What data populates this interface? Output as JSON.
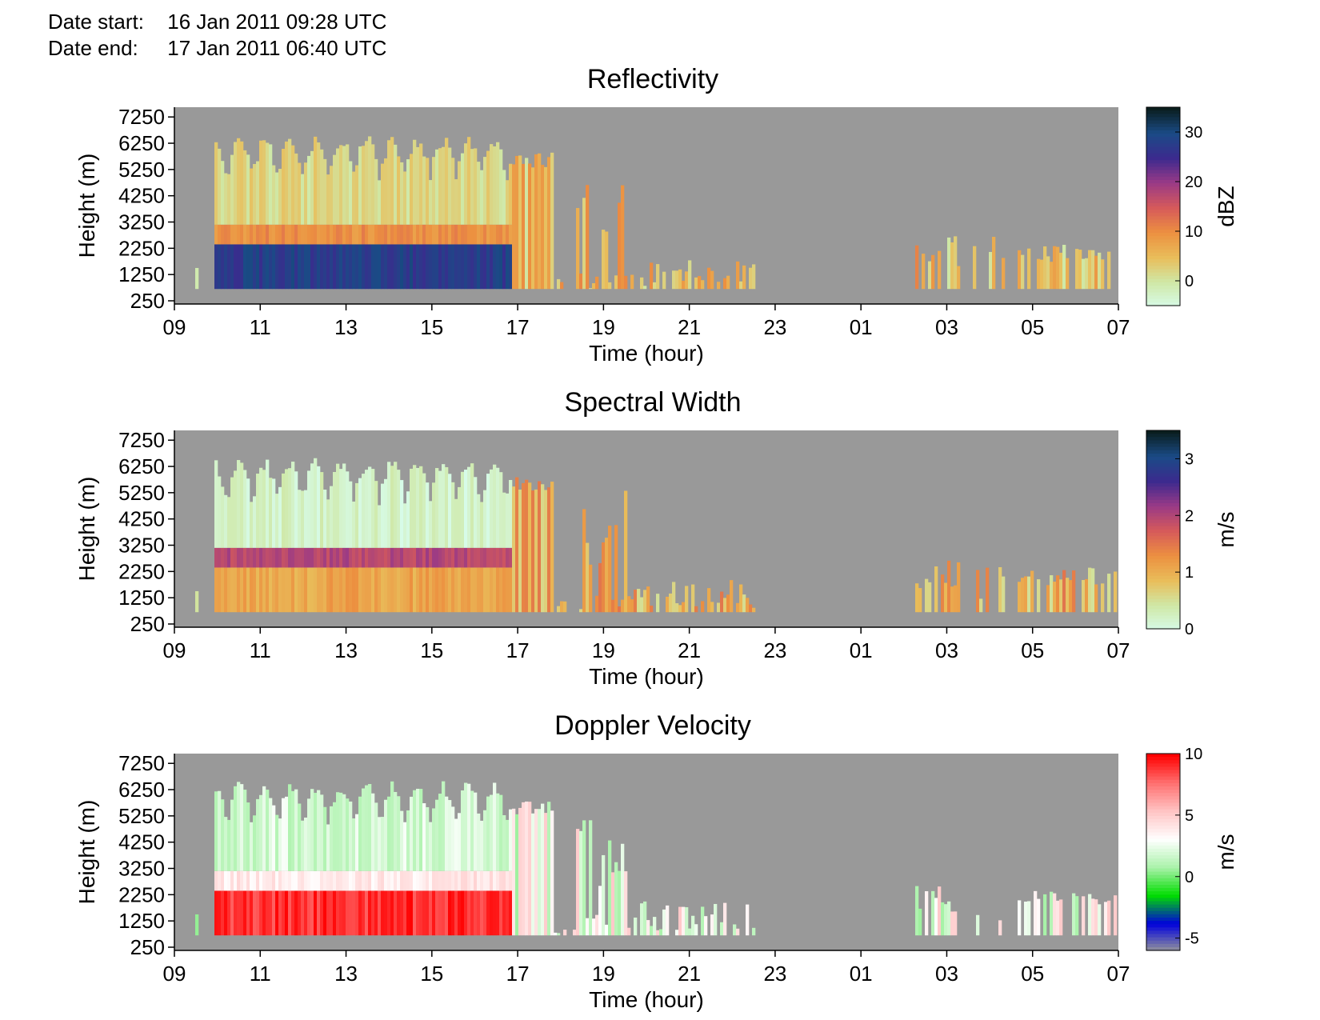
{
  "header": {
    "start_label": "Date start:",
    "start_value": "16 Jan 2011 09:28 UTC",
    "end_label": "Date end:",
    "end_value": "17 Jan 2011 06:40 UTC"
  },
  "colors": {
    "background": "#999999",
    "reflectivity_scale": [
      "#d7fbe8",
      "#cfe8a6",
      "#e9bd5a",
      "#ec9040",
      "#d65a5a",
      "#9a3a86",
      "#3c2a8e",
      "#1a4b86",
      "#0a1e1e"
    ],
    "spectral_width_scale": [
      "#d7fbe8",
      "#cfe8a6",
      "#e9bd5a",
      "#ec9040",
      "#d65a5a",
      "#9a3a86",
      "#3c2a8e",
      "#1a4b86",
      "#0a1e1e"
    ],
    "doppler_scale": [
      "#999999",
      "#0000dd",
      "#00dd00",
      "#aaf2aa",
      "#ffffff",
      "#ffc4c4",
      "#ff7070",
      "#ff0000"
    ]
  },
  "chart_data": [
    {
      "type": "heatmap",
      "title": "Reflectivity",
      "xlabel": "Time (hour)",
      "ylabel": "Height (m)",
      "x_ticks": [
        "09",
        "11",
        "13",
        "15",
        "17",
        "19",
        "21",
        "23",
        "01",
        "03",
        "05",
        "07"
      ],
      "y_ticks": [
        250,
        1250,
        2250,
        3250,
        4250,
        5250,
        6250,
        7250
      ],
      "ylim": [
        250,
        7500
      ],
      "colorbar": {
        "label": "dBZ",
        "ticks": [
          0,
          10,
          20,
          30
        ],
        "range": [
          -5,
          35
        ]
      },
      "value_profile": {
        "surface": 28,
        "layer": 10,
        "upper": 2,
        "sparse": 3
      }
    },
    {
      "type": "heatmap",
      "title": "Spectral Width",
      "xlabel": "Time (hour)",
      "ylabel": "Height (m)",
      "x_ticks": [
        "09",
        "11",
        "13",
        "15",
        "17",
        "19",
        "21",
        "23",
        "01",
        "03",
        "05",
        "07"
      ],
      "y_ticks": [
        250,
        1250,
        2250,
        3250,
        4250,
        5250,
        6250,
        7250
      ],
      "ylim": [
        250,
        7500
      ],
      "colorbar": {
        "label": "m/s",
        "ticks": [
          0,
          1,
          2,
          3
        ],
        "range": [
          0,
          3.5
        ]
      },
      "value_profile": {
        "surface": 1.1,
        "layer": 2.0,
        "upper": 0.2,
        "sparse": 0.8
      }
    },
    {
      "type": "heatmap",
      "title": "Doppler Velocity",
      "xlabel": "Time (hour)",
      "ylabel": "Height (m)",
      "x_ticks": [
        "09",
        "11",
        "13",
        "15",
        "17",
        "19",
        "21",
        "23",
        "01",
        "03",
        "05",
        "07"
      ],
      "y_ticks": [
        250,
        1250,
        2250,
        3250,
        4250,
        5250,
        6250,
        7250
      ],
      "ylim": [
        250,
        7500
      ],
      "colorbar": {
        "label": "m/s",
        "ticks": [
          10,
          5,
          0,
          -5
        ],
        "range": [
          -6,
          10
        ]
      },
      "value_profile": {
        "surface": 9,
        "layer": 4,
        "upper": 2,
        "sparse": 2
      }
    }
  ]
}
